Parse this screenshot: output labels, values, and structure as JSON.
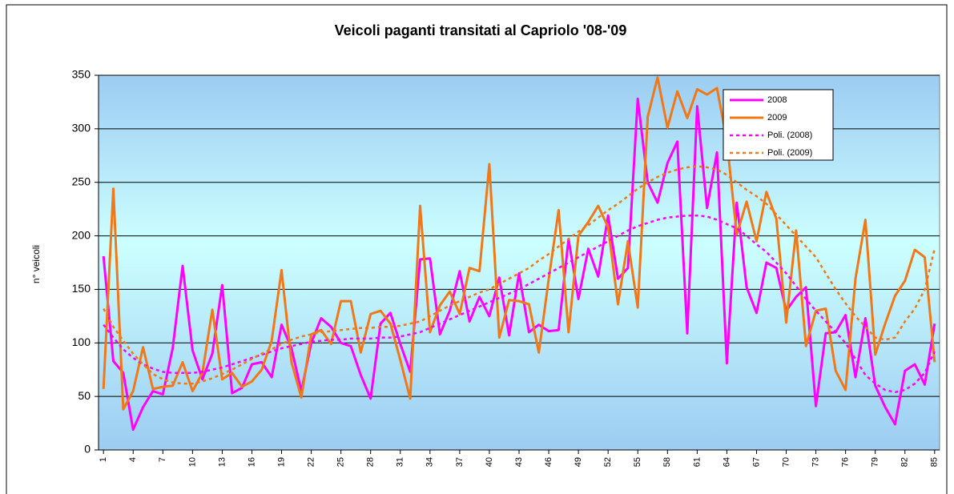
{
  "chart_data": {
    "type": "line",
    "title": "Veicoli paganti transitati al Capriolo '08-'09",
    "y_label": "n° veicoli",
    "categories": [
      1,
      null,
      null,
      4,
      null,
      null,
      7,
      null,
      null,
      10,
      null,
      null,
      13,
      null,
      null,
      16,
      null,
      null,
      19,
      null,
      null,
      22,
      null,
      null,
      25,
      null,
      null,
      28,
      null,
      null,
      31,
      null,
      null,
      34,
      null,
      null,
      37,
      null,
      null,
      40,
      null,
      null,
      43,
      null,
      null,
      46,
      null,
      null,
      49,
      null,
      null,
      52,
      null,
      null,
      55,
      null,
      null,
      58,
      null,
      null,
      61,
      null,
      null,
      64,
      null,
      null,
      67,
      null,
      null,
      70,
      null,
      null,
      73,
      null,
      null,
      76,
      null,
      null,
      79,
      null,
      null,
      82,
      null,
      null,
      85
    ],
    "ylim": [
      0,
      350
    ],
    "yticks": [
      0,
      50,
      100,
      150,
      200,
      250,
      300,
      350
    ],
    "grid": true,
    "legend": "upper right",
    "series": [
      {
        "name": "2008",
        "color": "#ff00ff",
        "style": "solid",
        "values": [
          181,
          83,
          72,
          19,
          40,
          55,
          52,
          95,
          172,
          93,
          66,
          90,
          154,
          53,
          58,
          80,
          82,
          68,
          117,
          95,
          55,
          100,
          123,
          115,
          100,
          97,
          70,
          48,
          118,
          128,
          99,
          73,
          178,
          179,
          108,
          130,
          167,
          120,
          143,
          125,
          161,
          107,
          165,
          110,
          117,
          111,
          112,
          197,
          141,
          188,
          162,
          219,
          160,
          170,
          328,
          250,
          231,
          268,
          288,
          109,
          321,
          226,
          278,
          81,
          231,
          152,
          128,
          175,
          170,
          130,
          143,
          152,
          41,
          109,
          110,
          126,
          68,
          123,
          60,
          40,
          24,
          74,
          80,
          61,
          118
        ]
      },
      {
        "name": "2009",
        "color": "#f07818",
        "style": "solid",
        "values": [
          57,
          244,
          38,
          55,
          96,
          57,
          59,
          60,
          82,
          55,
          72,
          131,
          66,
          72,
          59,
          64,
          75,
          102,
          168,
          82,
          49,
          108,
          112,
          99,
          139,
          139,
          91,
          127,
          130,
          118,
          84,
          48,
          228,
          110,
          135,
          148,
          127,
          170,
          167,
          267,
          105,
          140,
          139,
          136,
          91,
          160,
          224,
          110,
          200,
          213,
          228,
          208,
          136,
          195,
          133,
          311,
          348,
          301,
          335,
          310,
          337,
          332,
          338,
          289,
          201,
          232,
          195,
          241,
          216,
          119,
          205,
          97,
          130,
          132,
          74,
          56,
          160,
          215,
          89,
          118,
          144,
          158,
          187,
          180,
          82
        ]
      },
      {
        "name": "Poli. (2008)",
        "color": "#ff00ff",
        "style": "dotted",
        "values": [
          117,
          105,
          94,
          86,
          80,
          76,
          73,
          72,
          72,
          72,
          73,
          75,
          77,
          80,
          83,
          86,
          89,
          92,
          95,
          97,
          99,
          101,
          102,
          103,
          103,
          104,
          104,
          104,
          105,
          105,
          106,
          108,
          110,
          114,
          118,
          122,
          126,
          130,
          134,
          138,
          142,
          146,
          150,
          155,
          160,
          165,
          170,
          175,
          180,
          185,
          190,
          195,
          200,
          205,
          209,
          212,
          215,
          217,
          218,
          219,
          219,
          218,
          215,
          211,
          207,
          200,
          192,
          185,
          175,
          165,
          153,
          141,
          130,
          120,
          110,
          100,
          85,
          70,
          62,
          56,
          54,
          56,
          62,
          72,
          92
        ]
      },
      {
        "name": "Poli. (2009)",
        "color": "#f07818",
        "style": "dotted",
        "values": [
          132,
          115,
          102,
          90,
          80,
          71,
          66,
          63,
          62,
          62,
          64,
          67,
          71,
          75,
          80,
          85,
          90,
          94,
          99,
          103,
          106,
          108,
          110,
          111,
          112,
          113,
          114,
          114,
          115,
          115,
          116,
          118,
          120,
          125,
          130,
          135,
          139,
          143,
          147,
          150,
          155,
          160,
          165,
          170,
          177,
          183,
          190,
          197,
          204,
          210,
          217,
          224,
          230,
          237,
          244,
          250,
          255,
          259,
          262,
          264,
          265,
          264,
          262,
          257,
          250,
          243,
          237,
          230,
          220,
          210,
          200,
          190,
          180,
          165,
          150,
          137,
          125,
          115,
          105,
          103,
          105,
          120,
          132,
          150,
          188
        ]
      }
    ]
  }
}
